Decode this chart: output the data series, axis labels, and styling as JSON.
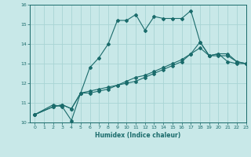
{
  "title": "",
  "xlabel": "Humidex (Indice chaleur)",
  "background_color": "#c8e8e8",
  "grid_color": "#b0d8d8",
  "line_color": "#1a6b6b",
  "xlim": [
    -0.5,
    23
  ],
  "ylim": [
    10,
    16
  ],
  "yticks": [
    10,
    11,
    12,
    13,
    14,
    15,
    16
  ],
  "xticks": [
    0,
    1,
    2,
    3,
    4,
    5,
    6,
    7,
    8,
    9,
    10,
    11,
    12,
    13,
    14,
    15,
    16,
    17,
    18,
    19,
    20,
    21,
    22,
    23
  ],
  "series1_x": [
    0,
    2,
    3,
    4,
    5,
    6,
    7,
    8,
    9,
    10,
    11,
    12,
    13,
    14,
    15,
    16,
    17,
    18,
    19,
    20,
    21,
    22,
    23
  ],
  "series1_y": [
    10.4,
    10.9,
    10.8,
    10.1,
    11.5,
    12.8,
    13.3,
    14.0,
    15.2,
    15.2,
    15.5,
    14.7,
    15.4,
    15.3,
    15.3,
    15.3,
    15.7,
    14.1,
    13.4,
    13.5,
    13.1,
    13.0,
    13.0
  ],
  "series2_x": [
    0,
    2,
    3,
    4,
    5,
    6,
    7,
    8,
    9,
    10,
    11,
    12,
    13,
    14,
    15,
    16,
    17,
    18,
    19,
    20,
    21,
    22,
    23
  ],
  "series2_y": [
    10.4,
    10.8,
    10.9,
    10.7,
    11.5,
    11.6,
    11.7,
    11.8,
    11.9,
    12.0,
    12.1,
    12.3,
    12.5,
    12.7,
    12.9,
    13.1,
    13.5,
    14.1,
    13.4,
    13.5,
    13.5,
    13.1,
    13.0
  ],
  "series3_x": [
    0,
    2,
    3,
    4,
    5,
    6,
    7,
    8,
    9,
    10,
    11,
    12,
    13,
    14,
    15,
    16,
    17,
    18,
    19,
    20,
    21,
    22,
    23
  ],
  "series3_y": [
    10.4,
    10.8,
    10.9,
    10.7,
    11.5,
    11.5,
    11.6,
    11.7,
    11.9,
    12.1,
    12.3,
    12.4,
    12.6,
    12.8,
    13.0,
    13.2,
    13.5,
    13.8,
    13.4,
    13.4,
    13.4,
    13.1,
    13.0
  ]
}
